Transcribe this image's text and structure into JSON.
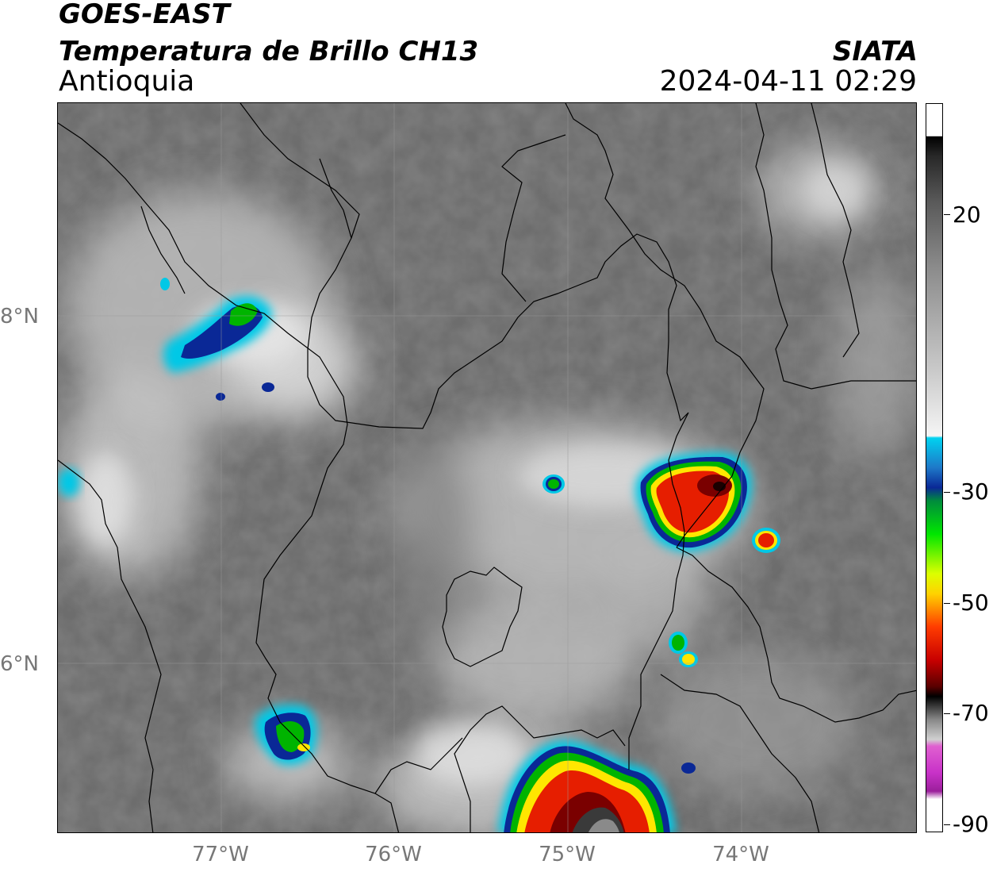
{
  "header": {
    "satellite": "GOES-EAST",
    "product": "Temperatura de Brillo CH13",
    "region": "Antioquia",
    "agency": "SIATA",
    "datetime": "2024-04-11 02:29"
  },
  "axes": {
    "x_ticks": [
      "77°W",
      "76°W",
      "75°W",
      "74°W"
    ],
    "y_ticks": [
      "8°N",
      "6°N"
    ]
  },
  "colorbar": {
    "tick_labels": [
      "20",
      "-30",
      "-50",
      "-70",
      "-90"
    ],
    "range": [
      -90,
      40
    ]
  },
  "colors": {
    "background_gray": "#6e6e6e",
    "cold_cyan": "#00c8e6",
    "cold_blue": "#0a2896",
    "green": "#00b400",
    "yellow": "#ffe600",
    "red": "#e61e00",
    "dark_red": "#7a0000",
    "magenta": "#c832c8"
  }
}
